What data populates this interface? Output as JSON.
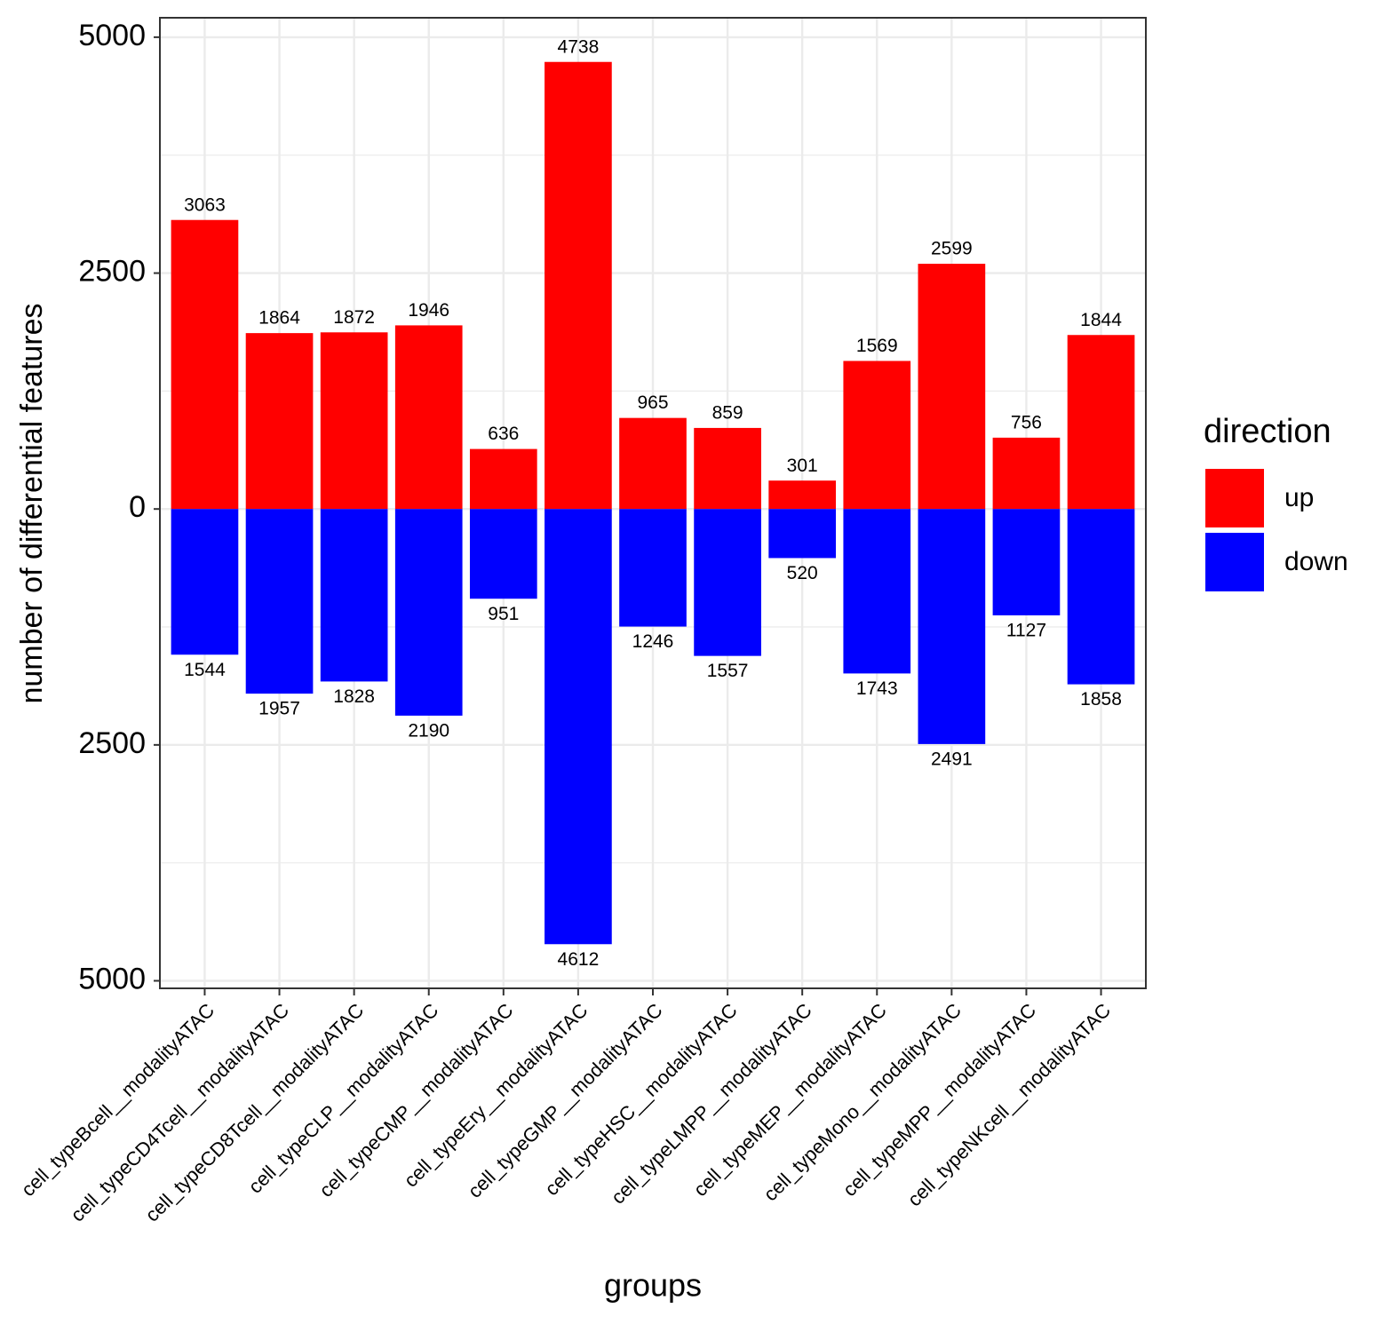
{
  "chart_data": {
    "type": "diverging-bar",
    "x_label": "groups",
    "y_label": "number of differential features",
    "categories": [
      "cell_typeBcell__modalityATAC",
      "cell_typeCD4Tcell__modalityATAC",
      "cell_typeCD8Tcell__modalityATAC",
      "cell_typeCLP__modalityATAC",
      "cell_typeCMP__modalityATAC",
      "cell_typeEry__modalityATAC",
      "cell_typeGMP__modalityATAC",
      "cell_typeHSC__modalityATAC",
      "cell_typeLMPP__modalityATAC",
      "cell_typeMEP__modalityATAC",
      "cell_typeMono__modalityATAC",
      "cell_typeMPP__modalityATAC",
      "cell_typeNKcell__modalityATAC"
    ],
    "series": [
      {
        "name": "up",
        "color": "#ff0000",
        "values": [
          3063,
          1864,
          1872,
          1946,
          636,
          4738,
          965,
          859,
          301,
          1569,
          2599,
          756,
          1844
        ]
      },
      {
        "name": "down",
        "color": "#0000ff",
        "values": [
          -1544,
          -1957,
          -1828,
          -2190,
          -951,
          -4612,
          -1246,
          -1557,
          -520,
          -1743,
          -2491,
          -1127,
          -1858
        ],
        "value_labels": [
          "1544",
          "1957",
          "1828",
          "2190",
          "951",
          "4612",
          "1246",
          "1557",
          "520",
          "1743",
          "2491",
          "1127",
          "1858"
        ]
      }
    ],
    "ylim": [
      -5080,
      5206
    ],
    "yticks": [
      {
        "value": -5000,
        "label": "5000"
      },
      {
        "value": -2500,
        "label": "2500"
      },
      0,
      2500,
      5000
    ],
    "y_minor_ticks": [
      -3750,
      -1250,
      1250,
      3750
    ],
    "grid": true,
    "legend_title": "direction",
    "legend_position": "right"
  }
}
